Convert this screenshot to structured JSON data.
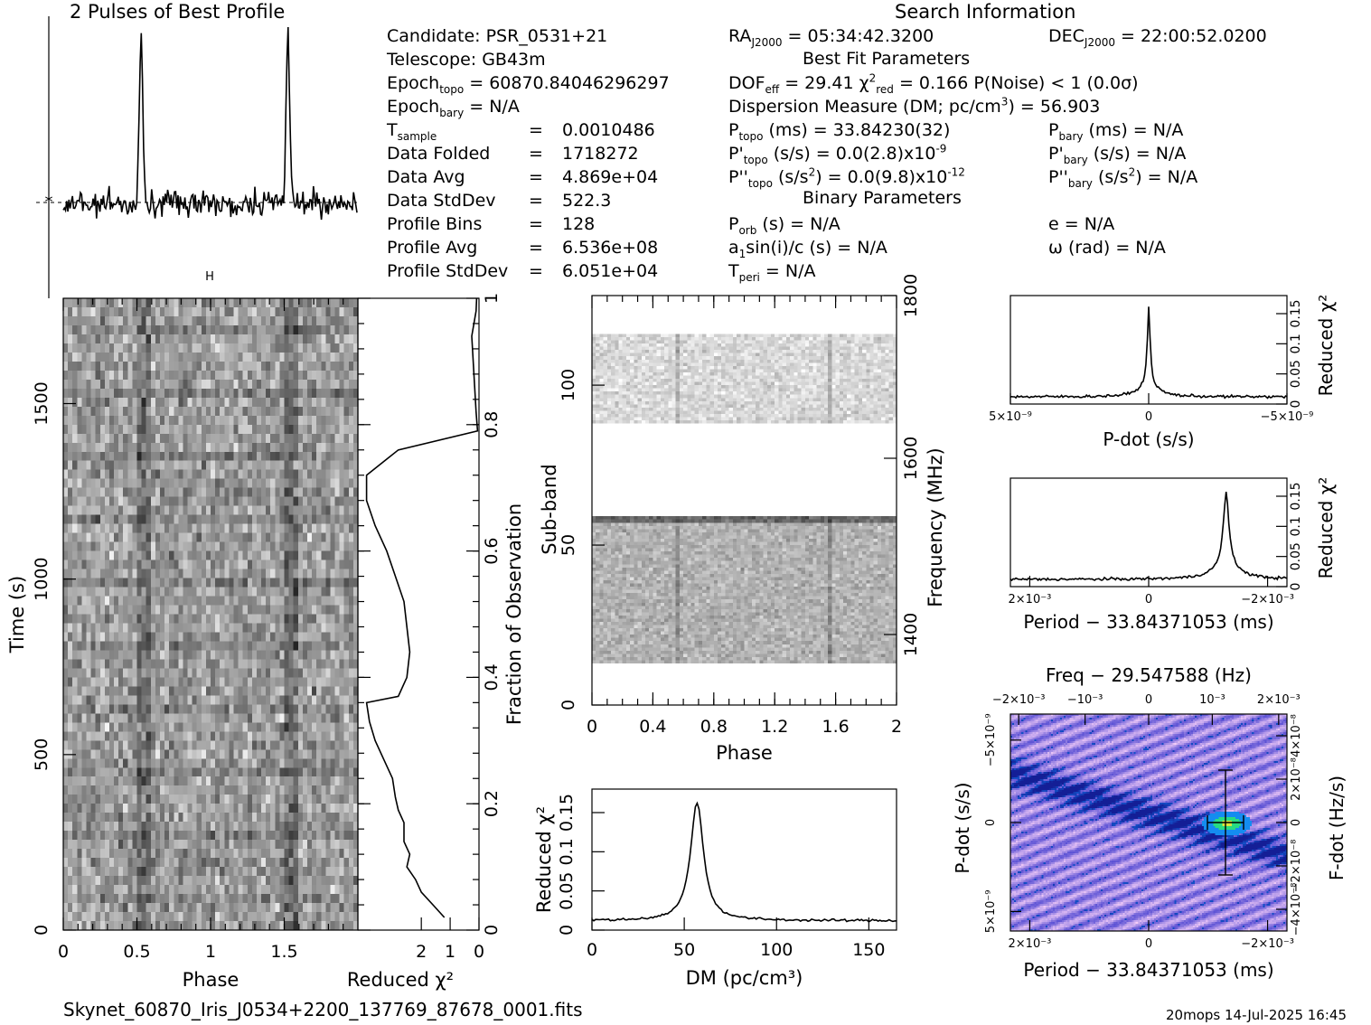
{
  "page": {
    "profile_title": "2 Pulses of Best Profile",
    "search_title": "Search Information",
    "best_fit_title": "Best Fit Parameters",
    "binary_title": "Binary Parameters",
    "filename": "Skynet_60870_Iris_J0534+2200_137769_87678_0001.fits",
    "footer": "20mops  14-Jul-2025 16:45"
  },
  "info_left": [
    {
      "label": "Candidate:  PSR_0531+21",
      "value": ""
    },
    {
      "label": "Telescope:  GB43m",
      "value": ""
    },
    {
      "label": "Epoch",
      "sub": "topo",
      "value": " = 60870.84046296297"
    },
    {
      "label": "Epoch",
      "sub": "bary",
      "value": " = N/A"
    },
    {
      "label": "T",
      "sub": "sample",
      "value": "0.0010486"
    },
    {
      "label": "Data Folded",
      "value": "1718272"
    },
    {
      "label": "Data Avg",
      "value": "4.869e+04"
    },
    {
      "label": "Data StdDev",
      "value": "522.3"
    },
    {
      "label": "Profile Bins",
      "value": "128"
    },
    {
      "label": "Profile Avg",
      "value": "6.536e+08"
    },
    {
      "label": "Profile StdDev",
      "value": "6.051e+04"
    }
  ],
  "info_mid": {
    "ra": "RA",
    "ra_sub": "J2000",
    "ra_value": " = 05:34:42.3200",
    "dec": "DEC",
    "dec_sub": "J2000",
    "dec_value": " = 22:00:52.0200",
    "dof": "DOF",
    "dof_sub": "eff",
    "dof_value": " = 29.41  ",
    "chi": "χ",
    "chi_sup": "2",
    "chi_sub": "red",
    "chi_value": " = 0.166  P(Noise) < 1   (0.0σ)",
    "dm_text": "Dispersion Measure (DM; pc/cm",
    "dm_sup": "3",
    "dm_value": ") = 56.903",
    "ptopo": "P",
    "ptopo_sub": "topo",
    "ptopo_value": " (ms) =  33.84230(32)",
    "pdtopo": "P'",
    "pdtopo_sub": "topo",
    "pdtopo_value": " (s/s) = 0.0(2.8)x10",
    "pdtopo_exp": "-9",
    "pddtopo": "P''",
    "pddtopo_sub": "topo",
    "pddtopo_value": " (s/s",
    "pddtopo_sup": "2",
    "pddtopo_value2": ") = 0.0(9.8)x10",
    "pddtopo_exp": "-12",
    "porb": "P",
    "porb_sub": "orb",
    "porb_value": " (s) = N/A",
    "a1": "a",
    "a1_sub": "1",
    "a1_value": "sin(i)/c (s) = N/A",
    "tperi": "T",
    "tperi_sub": "peri",
    "tperi_value": " = N/A"
  },
  "info_right": {
    "pbary": "P",
    "pbary_sub": "bary",
    "pbary_value": " (ms) = N/A",
    "pdbary": "P'",
    "pdbary_sub": "bary",
    "pdbary_value": " (s/s) = N/A",
    "pddbary": "P''",
    "pddbary_sub": "bary",
    "pddbary_value": " (s/s",
    "pddbary_sup": "2",
    "pddbary_value2": ") = N/A",
    "e": "e = N/A",
    "omega": "ω (rad) = N/A"
  },
  "chart_data": [
    {
      "id": "profile",
      "type": "line",
      "title": "2 Pulses of Best Profile",
      "x": "phase 0-2",
      "description_values": "two sharp pulses at phase ~0.53 and ~1.53 rising from a noisy baseline near mean",
      "peaks_phase": [
        0.53,
        1.53
      ]
    },
    {
      "id": "time_phase",
      "type": "heatmap",
      "xlabel": "Phase",
      "ylabel": "Time (s)",
      "xticks": [
        "0",
        "0.5",
        "1",
        "1.5"
      ],
      "yticks": [
        "0",
        "500",
        "1000",
        "1500"
      ],
      "xlim": [
        0,
        2
      ],
      "ylim": [
        0,
        1800
      ]
    },
    {
      "id": "time_chi",
      "type": "line",
      "xlabel": "Reduced χ²",
      "ylabel": "Fraction of Observation",
      "xticks": [
        "2",
        "1",
        "0"
      ],
      "yticks": [
        "0",
        "0.2",
        "0.4",
        "0.6",
        "0.8",
        "1"
      ],
      "points": [
        [
          1.2,
          0.02
        ],
        [
          1.6,
          0.04
        ],
        [
          2.0,
          0.06
        ],
        [
          2.2,
          0.08
        ],
        [
          2.5,
          0.1
        ],
        [
          2.4,
          0.12
        ],
        [
          2.6,
          0.14
        ],
        [
          2.6,
          0.17
        ],
        [
          2.8,
          0.19
        ],
        [
          2.9,
          0.21
        ],
        [
          3.0,
          0.24
        ],
        [
          3.3,
          0.27
        ],
        [
          3.6,
          0.3
        ],
        [
          3.8,
          0.33
        ],
        [
          3.9,
          0.36
        ],
        [
          2.8,
          0.37
        ],
        [
          2.5,
          0.4
        ],
        [
          2.4,
          0.44
        ],
        [
          2.5,
          0.48
        ],
        [
          2.6,
          0.52
        ],
        [
          2.9,
          0.56
        ],
        [
          3.2,
          0.6
        ],
        [
          3.6,
          0.64
        ],
        [
          3.9,
          0.68
        ],
        [
          3.9,
          0.72
        ],
        [
          2.8,
          0.76
        ],
        [
          0.05,
          0.79
        ],
        [
          0.1,
          0.82
        ],
        [
          0.15,
          0.86
        ],
        [
          0.2,
          0.9
        ],
        [
          0.25,
          0.94
        ],
        [
          0.1,
          0.98
        ],
        [
          0.08,
          1.0
        ]
      ]
    },
    {
      "id": "subband_phase",
      "type": "heatmap",
      "xlabel": "Phase",
      "ylabel": "Sub-band",
      "y2label": "Frequency (MHz)",
      "xticks": [
        "0",
        "0.4",
        "0.8",
        "1.2",
        "1.6",
        "2"
      ],
      "yticks": [
        "0",
        "50",
        "100"
      ],
      "y2ticks": [
        "1400",
        "1600",
        "1800"
      ],
      "xlim": [
        0,
        2
      ],
      "ylim": [
        0,
        128
      ]
    },
    {
      "id": "dm_chi",
      "type": "line",
      "xlabel": "DM (pc/cm³)",
      "ylabel": "Reduced χ²",
      "xticks": [
        "0",
        "50",
        "100",
        "150"
      ],
      "yticks": [
        "0",
        "0.05",
        "0.1",
        "0.15"
      ],
      "xlim": [
        0,
        165
      ],
      "ylim": [
        0,
        0.18
      ],
      "peak": [
        56.9,
        0.166
      ]
    },
    {
      "id": "pdot_chi",
      "type": "line",
      "xlabel": "P-dot (s/s)",
      "ylabel": "Reduced χ²",
      "xticks": [
        "5×10⁻⁹",
        "0",
        "−5×10⁻⁹"
      ],
      "yticks": [
        "0",
        "0.05",
        "0.1",
        "0.15"
      ],
      "ylim": [
        0,
        0.18
      ]
    },
    {
      "id": "period_chi",
      "type": "line",
      "xlabel": "Period − 33.84371053 (ms)",
      "ylabel": "Reduced χ²",
      "xticks": [
        "2×10⁻³",
        "0",
        "−2×10⁻³"
      ],
      "yticks": [
        "0",
        "0.05",
        "0.1",
        "0.15"
      ],
      "ylim": [
        0,
        0.18
      ]
    },
    {
      "id": "period_pdot",
      "type": "heatmap",
      "title": "Freq − 29.547588 (Hz)",
      "xlabel": "Period − 33.84371053 (ms)",
      "ylabel": "P-dot (s/s)",
      "y2label": "F-dot (Hz/s)",
      "xticks": [
        "2×10⁻³",
        "0",
        "−2×10⁻³"
      ],
      "x2ticks": [
        "−2×10⁻³",
        "−10⁻³",
        "0",
        "10⁻³",
        "2×10⁻³"
      ],
      "yticks": [
        "−5×10⁻⁹",
        "0",
        "5×10⁻⁹"
      ],
      "y2ticks": [
        "4×10⁻⁸",
        "2×10⁻⁸",
        "0",
        "−2×10⁻⁸",
        "−4×10⁻⁸"
      ]
    }
  ]
}
